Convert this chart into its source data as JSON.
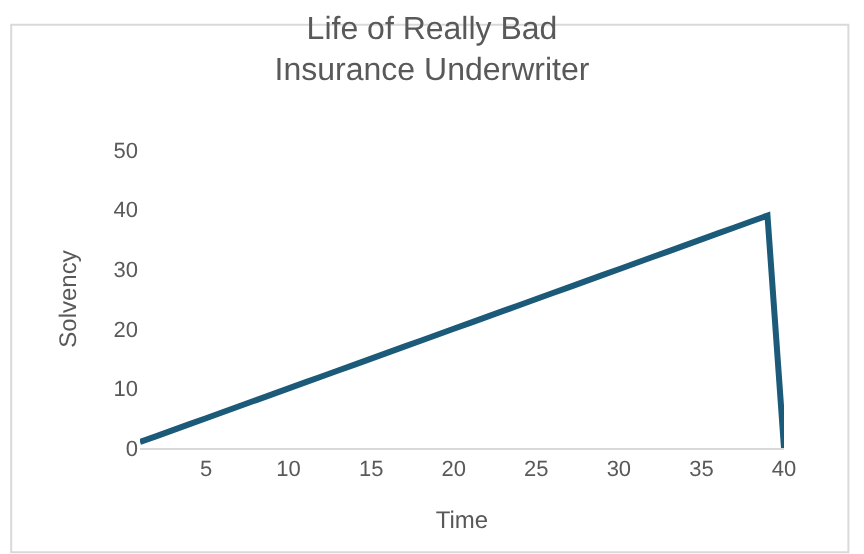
{
  "chart_data": {
    "type": "line",
    "title": "Life of Really Bad\nInsurance Underwriter",
    "xlabel": "Time",
    "ylabel": "Solvency",
    "x": [
      1,
      2,
      3,
      4,
      5,
      6,
      7,
      8,
      9,
      10,
      11,
      12,
      13,
      14,
      15,
      16,
      17,
      18,
      19,
      20,
      21,
      22,
      23,
      24,
      25,
      26,
      27,
      28,
      29,
      30,
      31,
      32,
      33,
      34,
      35,
      36,
      37,
      38,
      39,
      40
    ],
    "series": [
      {
        "color": "#1b5a78",
        "values": [
          1,
          2,
          3,
          4,
          5,
          6,
          7,
          8,
          9,
          10,
          11,
          12,
          13,
          14,
          15,
          16,
          17,
          18,
          19,
          20,
          21,
          22,
          23,
          24,
          25,
          26,
          27,
          28,
          29,
          30,
          31,
          32,
          33,
          34,
          35,
          36,
          37,
          38,
          39,
          0
        ]
      }
    ],
    "xlim": [
      1,
      40
    ],
    "xticks": [
      5,
      10,
      15,
      20,
      25,
      30,
      35,
      40
    ],
    "ylim": [
      0,
      50
    ],
    "yticks": [
      0,
      10,
      20,
      30,
      40,
      50
    ],
    "grid": false,
    "legend": false,
    "marker": "none",
    "line_style": "solid"
  }
}
